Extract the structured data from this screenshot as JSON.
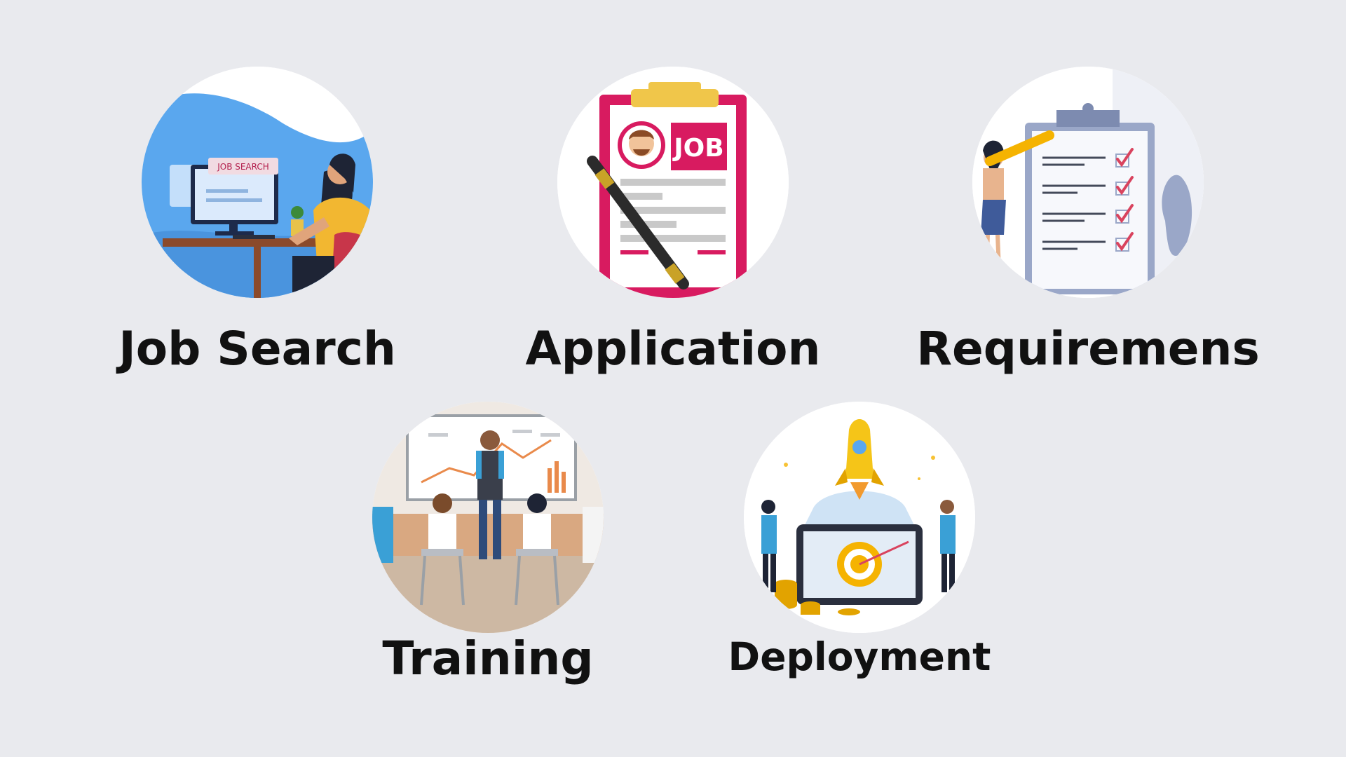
{
  "steps": [
    {
      "label": "Job Search",
      "icon": "job-search-illustration",
      "screen_text": "JOB SEARCH"
    },
    {
      "label": "Application",
      "icon": "job-application-clipboard-illustration",
      "badge_text": "JOB"
    },
    {
      "label": "Requiremens",
      "icon": "requirements-checklist-illustration"
    },
    {
      "label": "Training",
      "icon": "training-session-illustration"
    },
    {
      "label": "Deployment",
      "icon": "deployment-rocket-illustration"
    }
  ],
  "colors": {
    "background": "#e9eaee",
    "circle": "#ffffff",
    "label": "#111111",
    "accent_blue": "#5aa7ee",
    "accent_pink": "#d81b60",
    "accent_gold": "#f5b301"
  }
}
